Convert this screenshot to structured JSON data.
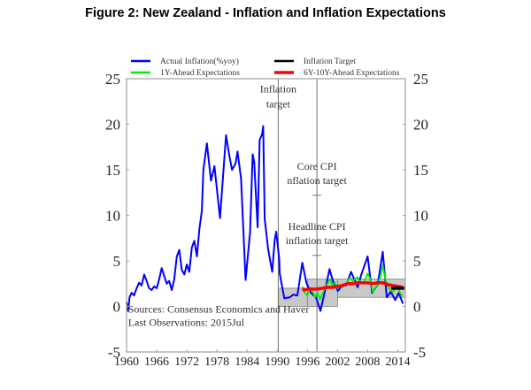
{
  "title": "Figure 2: New Zealand - Inflation and Inflation Expectations",
  "chart_data": {
    "type": "line",
    "title": "Figure 2: New Zealand - Inflation and Inflation Expectations",
    "xlabel": "",
    "ylabel": "",
    "xlim": [
      1960,
      2015.5
    ],
    "ylim": [
      -5,
      25
    ],
    "x_ticks": [
      1960,
      1966,
      1972,
      1978,
      1984,
      1990,
      1996,
      2002,
      2008,
      2014
    ],
    "x_tick_labels": [
      "1960",
      "1966",
      "1972",
      "1978",
      "1984",
      "1990",
      "1996",
      "2002",
      "2008",
      "2014"
    ],
    "y_ticks": [
      -5,
      0,
      5,
      10,
      15,
      20,
      25
    ],
    "y_tick_labels": [
      "-5",
      "0",
      "5",
      "10",
      "15",
      "20",
      "25"
    ],
    "grid": false,
    "legend_position": "top",
    "legend": [
      {
        "name": "Actual Inflation(%yoy)",
        "color": "#0000ff"
      },
      {
        "name": "1Y-Ahead Expectations",
        "color": "#00ee00"
      },
      {
        "name": "Inflation Target",
        "color": "#000000"
      },
      {
        "name": "6Y-10Y-Ahead Expectations",
        "color": "#ff0000"
      }
    ],
    "series": [
      {
        "name": "Actual Inflation(%yoy)",
        "color": "#0000ff",
        "x": [
          1960,
          1960.3,
          1960.6,
          1961,
          1961.5,
          1962,
          1962.5,
          1963,
          1963.5,
          1964,
          1964.5,
          1965,
          1965.5,
          1966,
          1966.5,
          1967,
          1967.5,
          1968,
          1968.5,
          1969,
          1969.5,
          1970,
          1970.5,
          1971,
          1971.5,
          1972,
          1972.5,
          1973,
          1973.5,
          1974,
          1974.5,
          1975,
          1975.3,
          1976,
          1976.8,
          1977.5,
          1978.6,
          1979.8,
          1980.5,
          1981,
          1981.7,
          1982.1,
          1982.8,
          1983.7,
          1984.6,
          1985.1,
          1985.4,
          1986.1,
          1986.5,
          1987,
          1987.2,
          1987.5,
          1988.2,
          1989,
          1989.5,
          1989.8,
          1990.4,
          1990.5,
          1991.4,
          1992.5,
          1993.2,
          1994,
          1995,
          1995.8,
          1996.7,
          1997.7,
          1998.6,
          1999.5,
          2000.4,
          2001.2,
          2002.1,
          2003,
          2003.7,
          2004.7,
          2006,
          2006.8,
          2008,
          2008.9,
          2010,
          2011,
          2011.8,
          2012.6,
          2013.5,
          2014.2,
          2015
        ],
        "values": [
          0.5,
          -0.5,
          1.0,
          1.5,
          1.2,
          2.0,
          2.6,
          2.3,
          3.5,
          2.8,
          2.0,
          1.8,
          2.2,
          2.0,
          3.0,
          4.2,
          3.3,
          2.5,
          2.8,
          1.8,
          3.0,
          5.5,
          6.2,
          4.0,
          3.5,
          4.6,
          3.8,
          6.5,
          7.2,
          5.5,
          8.5,
          10.5,
          15.0,
          17.9,
          13.8,
          15.4,
          9.7,
          18.8,
          16.4,
          15.0,
          15.7,
          17.0,
          14.0,
          2.9,
          8.2,
          16.7,
          15.9,
          8.7,
          18.3,
          18.9,
          19.8,
          9.6,
          6.2,
          3.8,
          7.3,
          8.2,
          5.2,
          3.6,
          0.9,
          1.0,
          1.3,
          1.2,
          4.8,
          2.6,
          1.5,
          1.0,
          -0.5,
          1.7,
          4.1,
          2.6,
          1.7,
          2.4,
          2.3,
          3.8,
          2.1,
          3.6,
          5.5,
          1.5,
          2.4,
          6.0,
          1.0,
          1.6,
          0.7,
          1.5,
          0.3
        ]
      },
      {
        "name": "1Y-Ahead Expectations",
        "color": "#00ee00",
        "x": [
          1995,
          1995.5,
          1996,
          1996.5,
          1997,
          1997.5,
          1998,
          1998.5,
          1999,
          1999.5,
          2000,
          2000.5,
          2001,
          2001.5,
          2002,
          2002.5,
          2003,
          2003.5,
          2004,
          2004.5,
          2005,
          2005.5,
          2006,
          2006.5,
          2007,
          2007.5,
          2008,
          2008.5,
          2009,
          2009.5,
          2010,
          2010.5,
          2011,
          2011.5,
          2012,
          2012.5,
          2013,
          2013.5,
          2014,
          2014.5,
          2015
        ],
        "values": [
          2.2,
          1.5,
          1.2,
          2.0,
          1.8,
          1.0,
          1.5,
          0.8,
          1.4,
          2.0,
          2.5,
          3.0,
          2.3,
          2.6,
          2.0,
          2.3,
          2.1,
          2.4,
          2.8,
          3.2,
          2.8,
          3.0,
          3.2,
          2.6,
          2.5,
          2.9,
          3.6,
          3.0,
          1.6,
          2.0,
          2.4,
          3.2,
          4.5,
          3.0,
          2.3,
          1.8,
          1.6,
          2.0,
          2.2,
          1.4,
          1.2
        ]
      },
      {
        "name": "6Y-10Y-Ahead Expectations",
        "color": "#ff0000",
        "x": [
          1995,
          1996,
          1997,
          1998,
          1999,
          2000,
          2001,
          2002,
          2003,
          2004,
          2005,
          2006,
          2007,
          2008,
          2009,
          2010,
          2011,
          2012,
          2013,
          2014,
          2015
        ],
        "values": [
          1.8,
          1.9,
          1.9,
          1.9,
          2.0,
          2.1,
          2.1,
          2.2,
          2.3,
          2.5,
          2.5,
          2.6,
          2.6,
          2.6,
          2.5,
          2.6,
          2.6,
          2.4,
          2.3,
          2.2,
          2.1
        ]
      },
      {
        "name": "Inflation Target",
        "color": "#000000",
        "x": [
          2012.7,
          2015.3
        ],
        "values": [
          2.0,
          2.0
        ]
      }
    ],
    "target_bands": [
      {
        "from": 1990.2,
        "to": 1996,
        "low": 0,
        "high": 2
      },
      {
        "from": 1996,
        "to": 2002,
        "low": 0,
        "high": 3
      },
      {
        "from": 2002,
        "to": 2015.5,
        "low": 1,
        "high": 3
      }
    ],
    "vertical_lines": [
      1990.2,
      1997.9
    ],
    "annotations": [
      {
        "text_lines": [
          "Inflation",
          "target"
        ],
        "x": 1990.2,
        "y": 23.5
      },
      {
        "text_lines": [
          "Core CPI",
          "nflation target"
        ],
        "x": 1997.9,
        "y": 15
      },
      {
        "text_lines": [
          "Headline CPI",
          "inflation target"
        ],
        "x": 1997.9,
        "y": 8.4
      },
      {
        "text_lines": [
          "Sources: Consensus Economics and Haver",
          "Last Observations: 2015Jul"
        ],
        "x": 1960.3,
        "y": -0.7
      }
    ]
  }
}
